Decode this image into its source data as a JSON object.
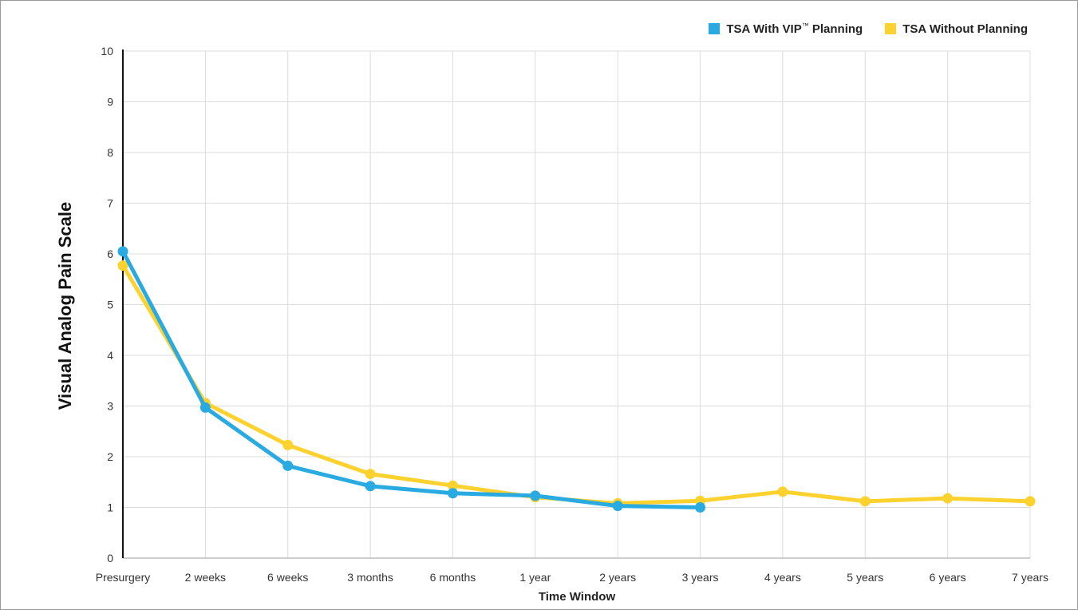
{
  "chart_data": {
    "type": "line",
    "title": "",
    "xlabel": "Time Window",
    "ylabel": "Visual Analog Pain Scale",
    "categories": [
      "Presurgery",
      "2 weeks",
      "6 weeks",
      "3 months",
      "6 months",
      "1 year",
      "2 years",
      "3 years",
      "4 years",
      "5 years",
      "6 years",
      "7 years"
    ],
    "ylim": [
      0,
      10
    ],
    "yticks": [
      0,
      1,
      2,
      3,
      4,
      5,
      6,
      7,
      8,
      9,
      10
    ],
    "grid": true,
    "legend_position": "top-right",
    "series": [
      {
        "name": "TSA With VIP Planning",
        "legend_main": "TSA With VIP",
        "legend_tm": "™",
        "legend_tail": " Planning",
        "color": "#29ABE2",
        "values": [
          6.05,
          2.97,
          1.82,
          1.42,
          1.28,
          1.23,
          1.03,
          1.0,
          null,
          null,
          null,
          null
        ]
      },
      {
        "name": "TSA Without Planning",
        "color": "#FDD22F",
        "values": [
          5.77,
          3.06,
          2.23,
          1.66,
          1.43,
          1.2,
          1.08,
          1.13,
          1.31,
          1.12,
          1.18,
          1.12
        ]
      }
    ]
  }
}
